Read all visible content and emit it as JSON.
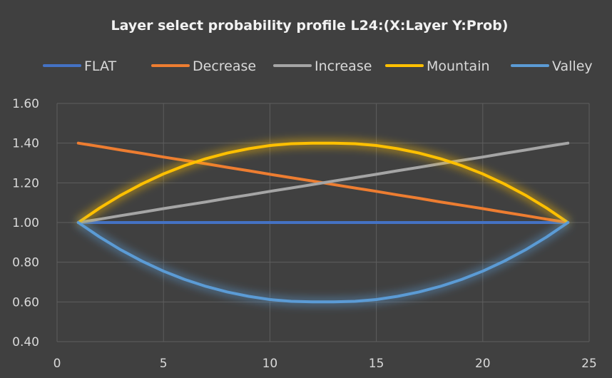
{
  "chart_data": {
    "type": "line",
    "title": "Layer select probability profile L24:(X:Layer Y:Prob)",
    "xlabel": "",
    "ylabel": "",
    "xlim": [
      0,
      25
    ],
    "ylim": [
      0.4,
      1.6
    ],
    "x_ticks": [
      0,
      5,
      10,
      15,
      20,
      25
    ],
    "y_ticks": [
      "0.40",
      "0.60",
      "0.80",
      "1.00",
      "1.20",
      "1.40",
      "1.60"
    ],
    "grid": true,
    "legend_position": "top",
    "x": [
      1,
      2,
      3,
      4,
      5,
      6,
      7,
      8,
      9,
      10,
      11,
      12,
      13,
      14,
      15,
      16,
      17,
      18,
      19,
      20,
      21,
      22,
      23,
      24
    ],
    "series": [
      {
        "name": "FLAT",
        "color": "#4472c4",
        "glow": false,
        "values": [
          1.0,
          1.0,
          1.0,
          1.0,
          1.0,
          1.0,
          1.0,
          1.0,
          1.0,
          1.0,
          1.0,
          1.0,
          1.0,
          1.0,
          1.0,
          1.0,
          1.0,
          1.0,
          1.0,
          1.0,
          1.0,
          1.0,
          1.0,
          1.0
        ]
      },
      {
        "name": "Decrease",
        "color": "#ed7d31",
        "glow": false,
        "values": [
          1.4,
          1.383,
          1.365,
          1.348,
          1.33,
          1.313,
          1.296,
          1.278,
          1.261,
          1.243,
          1.226,
          1.209,
          1.191,
          1.174,
          1.157,
          1.139,
          1.122,
          1.104,
          1.087,
          1.07,
          1.052,
          1.035,
          1.017,
          1.0
        ]
      },
      {
        "name": "Increase",
        "color": "#a5a5a5",
        "glow": false,
        "values": [
          1.0,
          1.017,
          1.035,
          1.052,
          1.07,
          1.087,
          1.104,
          1.122,
          1.139,
          1.157,
          1.174,
          1.191,
          1.209,
          1.226,
          1.243,
          1.261,
          1.278,
          1.296,
          1.313,
          1.33,
          1.348,
          1.365,
          1.383,
          1.4
        ]
      },
      {
        "name": "Mountain",
        "color": "#ffc000",
        "glow": true,
        "values": [
          1.0,
          1.073,
          1.138,
          1.195,
          1.245,
          1.287,
          1.322,
          1.35,
          1.372,
          1.388,
          1.397,
          1.4,
          1.4,
          1.397,
          1.388,
          1.372,
          1.35,
          1.322,
          1.287,
          1.245,
          1.195,
          1.138,
          1.073,
          1.0
        ]
      },
      {
        "name": "Valley",
        "color": "#5b9bd5",
        "glow": true,
        "values": [
          1.0,
          0.927,
          0.862,
          0.805,
          0.755,
          0.713,
          0.678,
          0.65,
          0.628,
          0.612,
          0.603,
          0.6,
          0.6,
          0.603,
          0.612,
          0.628,
          0.65,
          0.678,
          0.713,
          0.755,
          0.805,
          0.862,
          0.927,
          1.0
        ]
      }
    ]
  }
}
